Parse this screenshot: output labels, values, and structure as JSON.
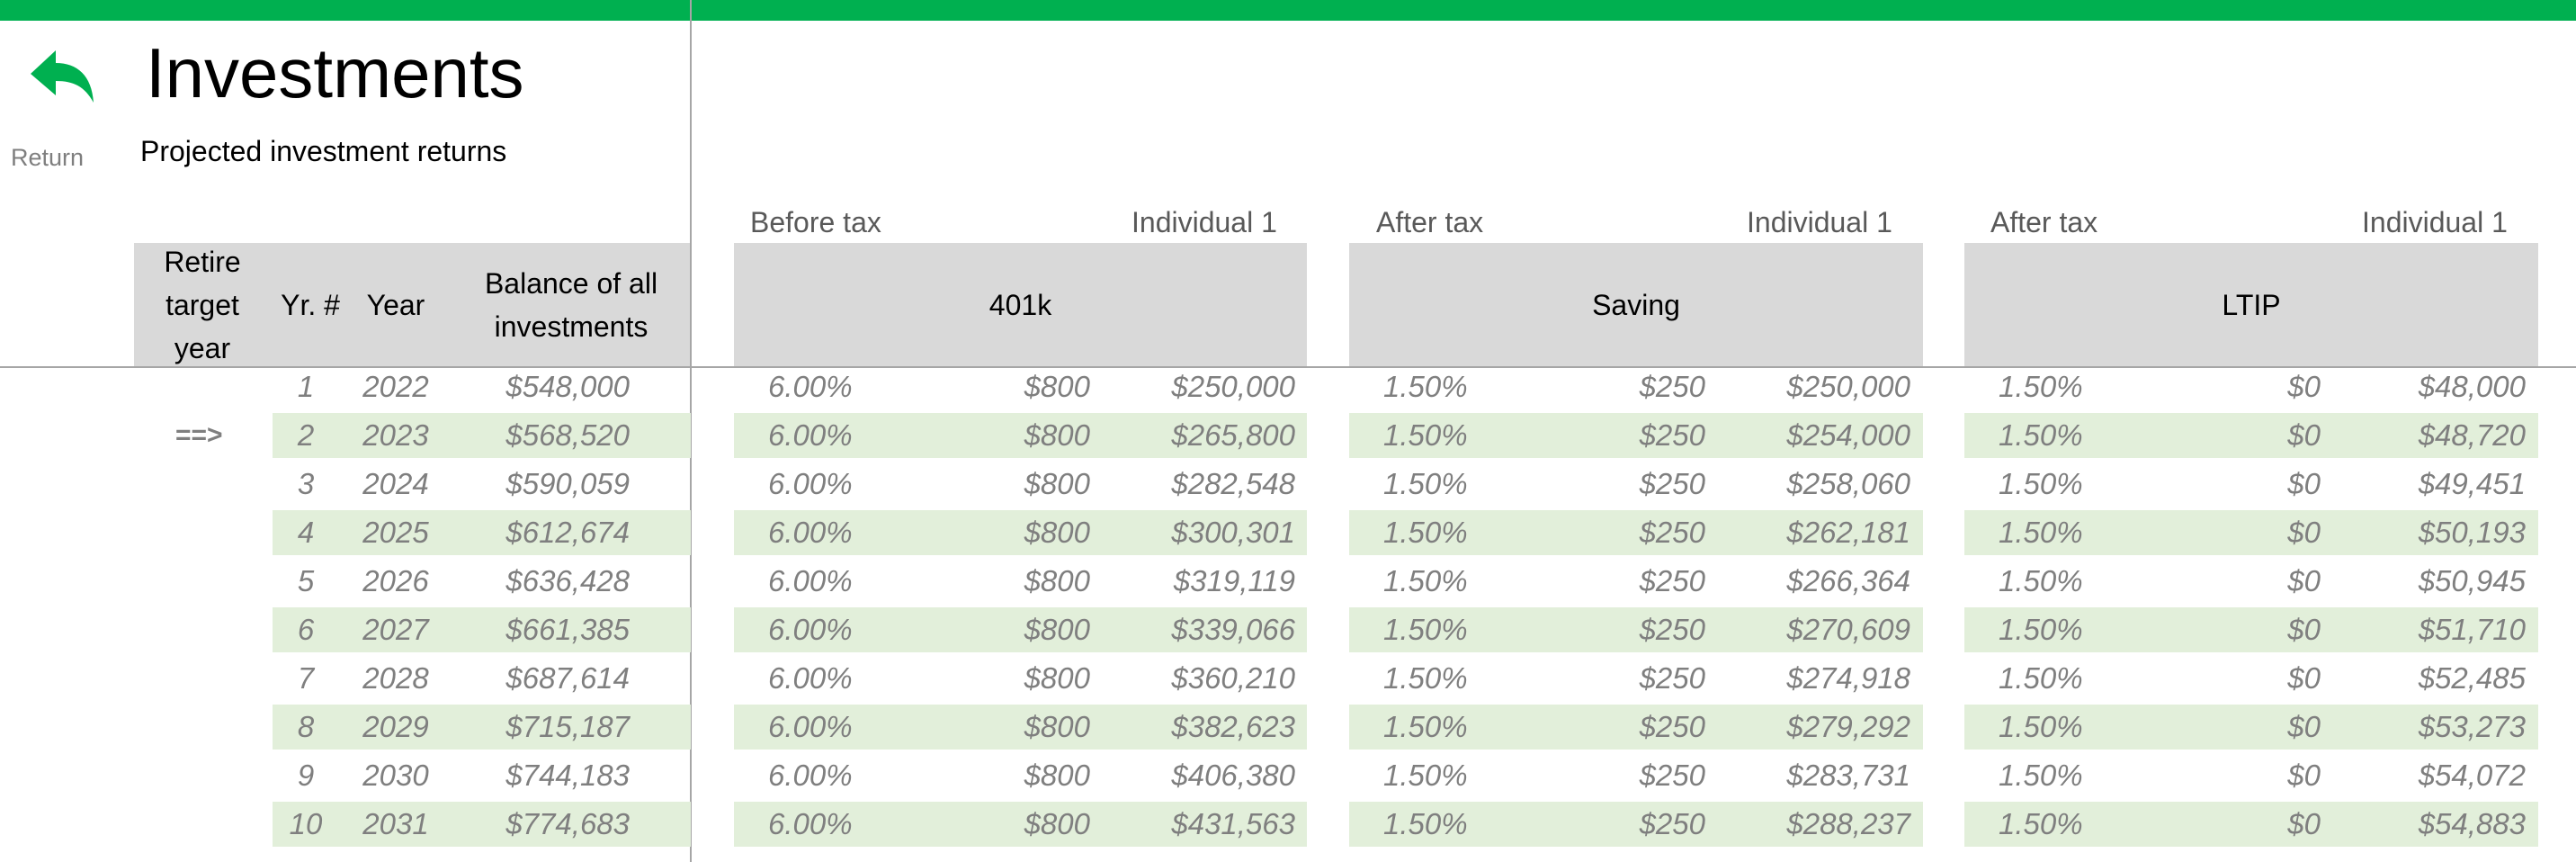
{
  "page": {
    "title": "Investments",
    "subtitle": "Projected investment returns",
    "return_label": "Return",
    "accent_color": "#00b050",
    "band_color": "#e2efda",
    "header_fill": "#d9d9d9"
  },
  "headers": {
    "retire": "Retire target year",
    "yr": "Yr. #",
    "year": "Year",
    "balance": "Balance of all investments"
  },
  "groups": [
    {
      "tax": "Before tax",
      "individual": "Individual 1",
      "name": "401k"
    },
    {
      "tax": "After tax",
      "individual": "Individual 1",
      "name": "Saving"
    },
    {
      "tax": "After tax",
      "individual": "Individual 1",
      "name": "LTIP"
    }
  ],
  "marker": "==>",
  "rows": [
    {
      "yr": "1",
      "year": "2022",
      "balance": "$548,000",
      "g": [
        [
          "6.00%",
          "$800",
          "$250,000"
        ],
        [
          "1.50%",
          "$250",
          "$250,000"
        ],
        [
          "1.50%",
          "$0",
          "$48,000"
        ]
      ]
    },
    {
      "yr": "2",
      "year": "2023",
      "balance": "$568,520",
      "g": [
        [
          "6.00%",
          "$800",
          "$265,800"
        ],
        [
          "1.50%",
          "$250",
          "$254,000"
        ],
        [
          "1.50%",
          "$0",
          "$48,720"
        ]
      ]
    },
    {
      "yr": "3",
      "year": "2024",
      "balance": "$590,059",
      "g": [
        [
          "6.00%",
          "$800",
          "$282,548"
        ],
        [
          "1.50%",
          "$250",
          "$258,060"
        ],
        [
          "1.50%",
          "$0",
          "$49,451"
        ]
      ]
    },
    {
      "yr": "4",
      "year": "2025",
      "balance": "$612,674",
      "g": [
        [
          "6.00%",
          "$800",
          "$300,301"
        ],
        [
          "1.50%",
          "$250",
          "$262,181"
        ],
        [
          "1.50%",
          "$0",
          "$50,193"
        ]
      ]
    },
    {
      "yr": "5",
      "year": "2026",
      "balance": "$636,428",
      "g": [
        [
          "6.00%",
          "$800",
          "$319,119"
        ],
        [
          "1.50%",
          "$250",
          "$266,364"
        ],
        [
          "1.50%",
          "$0",
          "$50,945"
        ]
      ]
    },
    {
      "yr": "6",
      "year": "2027",
      "balance": "$661,385",
      "g": [
        [
          "6.00%",
          "$800",
          "$339,066"
        ],
        [
          "1.50%",
          "$250",
          "$270,609"
        ],
        [
          "1.50%",
          "$0",
          "$51,710"
        ]
      ]
    },
    {
      "yr": "7",
      "year": "2028",
      "balance": "$687,614",
      "g": [
        [
          "6.00%",
          "$800",
          "$360,210"
        ],
        [
          "1.50%",
          "$250",
          "$274,918"
        ],
        [
          "1.50%",
          "$0",
          "$52,485"
        ]
      ]
    },
    {
      "yr": "8",
      "year": "2029",
      "balance": "$715,187",
      "g": [
        [
          "6.00%",
          "$800",
          "$382,623"
        ],
        [
          "1.50%",
          "$250",
          "$279,292"
        ],
        [
          "1.50%",
          "$0",
          "$53,273"
        ]
      ]
    },
    {
      "yr": "9",
      "year": "2030",
      "balance": "$744,183",
      "g": [
        [
          "6.00%",
          "$800",
          "$406,380"
        ],
        [
          "1.50%",
          "$250",
          "$283,731"
        ],
        [
          "1.50%",
          "$0",
          "$54,072"
        ]
      ]
    },
    {
      "yr": "10",
      "year": "2031",
      "balance": "$774,683",
      "g": [
        [
          "6.00%",
          "$800",
          "$431,563"
        ],
        [
          "1.50%",
          "$250",
          "$288,237"
        ],
        [
          "1.50%",
          "$0",
          "$54,883"
        ]
      ]
    }
  ]
}
